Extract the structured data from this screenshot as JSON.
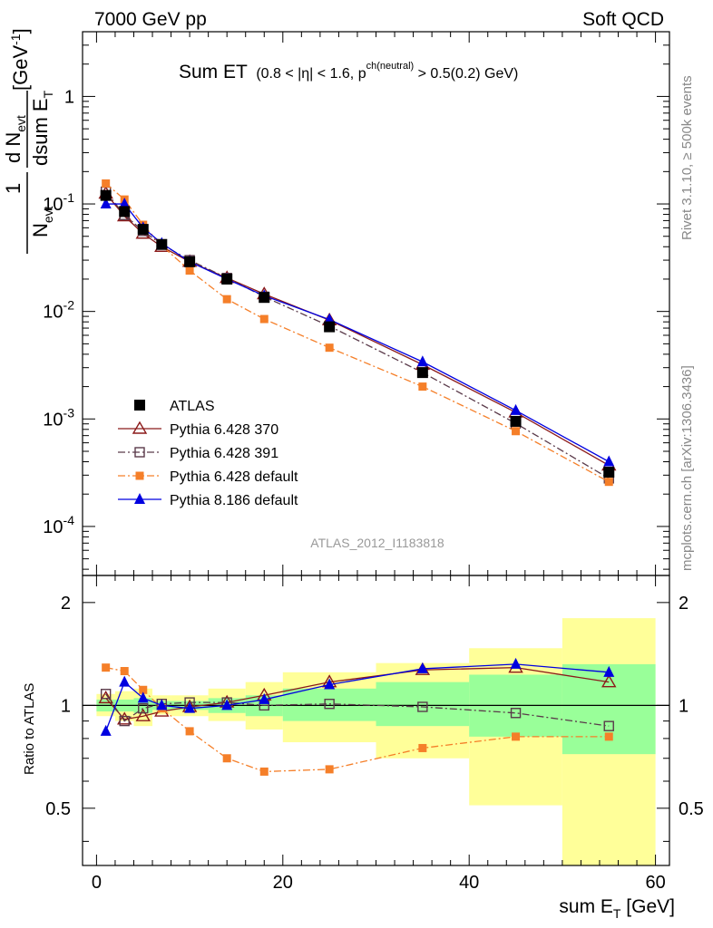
{
  "header": {
    "left": "7000 GeV pp",
    "right": "Soft QCD"
  },
  "side_labels": {
    "rivet": "Rivet 3.1.10, ≥ 500k events",
    "mcplots": "mcplots.cern.ch [arXiv:1306.3436]"
  },
  "watermark": "ATLAS_2012_I1183818",
  "main_title": {
    "main": "Sum ET",
    "cut_a": "(0.8 < |η| < 1.6, p",
    "cut_sup": "ch(neutral)",
    "cut_b": " > 0.5(0.2) GeV)"
  },
  "ylabel_parts": {
    "one": "1",
    "n": "N",
    "n_sub": "evt",
    "dn": "d N",
    "dn_sub": "evt",
    "dsum": "dsum E",
    "dsum_sub": "T",
    "unit": "[GeV",
    "unit_sup": "-1",
    "unit_end": "]"
  },
  "ratio_ylabel": "Ratio to ATLAS",
  "xlabel": {
    "text": "sum E",
    "sub": "T",
    "unit": " [GeV]"
  },
  "colors": {
    "atlas": "#000000",
    "p370": "#8b1a1a",
    "p391": "#5a3a4a",
    "p6def": "#f57f29",
    "p8def": "#0000e0",
    "band_inner": "#99ff99",
    "band_outer": "#ffff99"
  },
  "chart_data": [
    {
      "type": "line",
      "yscale": "log",
      "xlim": [
        -1.5,
        61.5
      ],
      "ylim": [
        3.5e-05,
        4.0
      ],
      "x_ticks": [
        0,
        20,
        40,
        60
      ],
      "y_ticks": [
        {
          "value": 0.0001,
          "base": "10",
          "exp": "-4"
        },
        {
          "value": 0.001,
          "base": "10",
          "exp": "-3"
        },
        {
          "value": 0.01,
          "base": "10",
          "exp": "-2"
        },
        {
          "value": 0.1,
          "base": "10",
          "exp": "-1"
        },
        {
          "value": 1,
          "base": "1",
          "exp": ""
        }
      ],
      "legend_position": "bottom-left",
      "x": [
        1,
        3,
        5,
        7,
        10,
        14,
        18,
        25,
        35,
        45,
        55
      ],
      "series": [
        {
          "name": "ATLAS",
          "color": "#000000",
          "marker": "filled-square",
          "line": "none",
          "values": [
            0.12,
            0.085,
            0.058,
            0.042,
            0.029,
            0.02,
            0.0135,
            0.0072,
            0.0027,
            0.00095,
            0.00032
          ]
        },
        {
          "name": "Pythia 6.428 370",
          "color": "#8b1a1a",
          "marker": "open-triangle",
          "line": "solid",
          "values": [
            0.125,
            0.077,
            0.053,
            0.04,
            0.029,
            0.0205,
            0.0145,
            0.0083,
            0.0032,
            0.00115,
            0.00037
          ]
        },
        {
          "name": "Pythia 6.428 391",
          "color": "#5a3a4a",
          "marker": "open-square",
          "line": "dashdot",
          "values": [
            0.13,
            0.079,
            0.056,
            0.042,
            0.03,
            0.0205,
            0.0137,
            0.0073,
            0.0027,
            0.00091,
            0.00028
          ]
        },
        {
          "name": "Pythia 6.428 default",
          "color": "#f57f29",
          "marker": "filled-square-small",
          "line": "dashdot",
          "values": [
            0.155,
            0.11,
            0.064,
            0.041,
            0.024,
            0.013,
            0.0085,
            0.0046,
            0.002,
            0.00077,
            0.00026
          ]
        },
        {
          "name": "Pythia 8.186 default",
          "color": "#0000e0",
          "marker": "filled-triangle",
          "line": "solid",
          "values": [
            0.1,
            0.1,
            0.06,
            0.043,
            0.029,
            0.02,
            0.014,
            0.0084,
            0.0034,
            0.0012,
            0.0004
          ]
        }
      ]
    },
    {
      "type": "line",
      "ylabel": "Ratio to ATLAS",
      "xlim": [
        -1.5,
        61.5
      ],
      "ylim": [
        0.34,
        2.4
      ],
      "x_ticks": [
        0,
        20,
        40,
        60
      ],
      "y_ticks": [
        0.5,
        1,
        2
      ],
      "x": [
        1,
        3,
        5,
        7,
        10,
        14,
        18,
        25,
        35,
        45,
        55
      ],
      "bands": {
        "edges": [
          0,
          2,
          4,
          6,
          8,
          12,
          16,
          20,
          30,
          40,
          50,
          60
        ],
        "inner": [
          [
            0.96,
            1.04
          ],
          [
            0.96,
            1.04
          ],
          [
            0.95,
            1.05
          ],
          [
            0.97,
            1.03
          ],
          [
            0.97,
            1.03
          ],
          [
            0.95,
            1.05
          ],
          [
            0.93,
            1.07
          ],
          [
            0.9,
            1.12
          ],
          [
            0.87,
            1.17
          ],
          [
            0.81,
            1.23
          ],
          [
            0.72,
            1.32
          ]
        ],
        "outer": [
          [
            0.93,
            1.08
          ],
          [
            0.9,
            1.1
          ],
          [
            0.87,
            1.12
          ],
          [
            0.94,
            1.07
          ],
          [
            0.93,
            1.07
          ],
          [
            0.9,
            1.12
          ],
          [
            0.85,
            1.17
          ],
          [
            0.78,
            1.25
          ],
          [
            0.7,
            1.33
          ],
          [
            0.51,
            1.47
          ],
          [
            0.34,
            1.8
          ]
        ]
      },
      "series": [
        {
          "name": "Pythia 6.428 370",
          "color": "#8b1a1a",
          "marker": "open-triangle",
          "line": "solid",
          "values": [
            1.05,
            0.91,
            0.93,
            0.96,
            0.99,
            1.02,
            1.07,
            1.17,
            1.27,
            1.29,
            1.17
          ]
        },
        {
          "name": "Pythia 6.428 391",
          "color": "#5a3a4a",
          "marker": "open-square",
          "line": "dashdot",
          "values": [
            1.08,
            0.9,
            0.98,
            1.01,
            1.02,
            1.02,
            1.0,
            1.01,
            0.99,
            0.95,
            0.87
          ]
        },
        {
          "name": "Pythia 6.428 default",
          "color": "#f57f29",
          "marker": "filled-square-small",
          "line": "dashdot",
          "values": [
            1.29,
            1.26,
            1.11,
            0.98,
            0.84,
            0.7,
            0.64,
            0.65,
            0.75,
            0.81,
            0.81
          ]
        },
        {
          "name": "Pythia 8.186 default",
          "color": "#0000e0",
          "marker": "filled-triangle",
          "line": "solid",
          "values": [
            0.84,
            1.17,
            1.05,
            1.0,
            0.98,
            1.0,
            1.04,
            1.15,
            1.28,
            1.32,
            1.25
          ]
        }
      ]
    }
  ]
}
